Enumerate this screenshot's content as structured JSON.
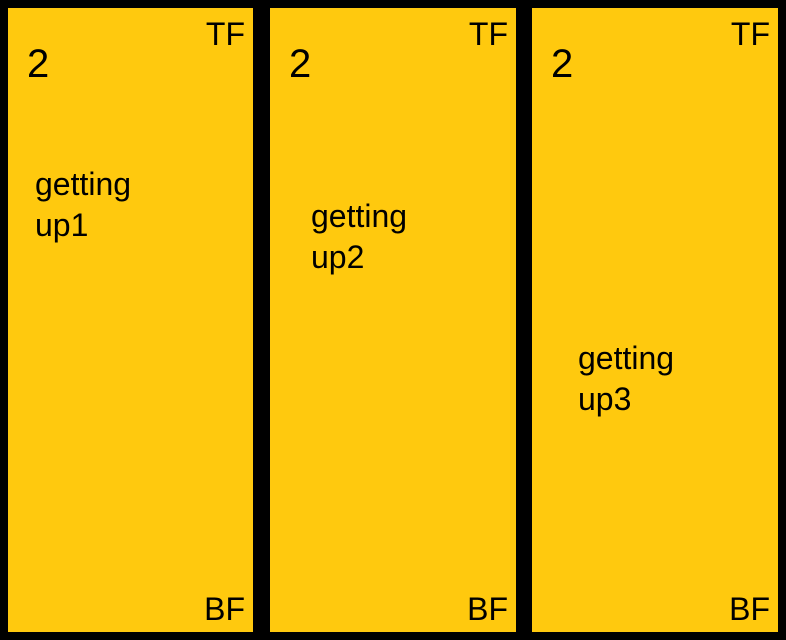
{
  "panels": [
    {
      "corner_top": "TF",
      "number": "2",
      "caption": "getting\nup1",
      "corner_bottom": "BF"
    },
    {
      "corner_top": "TF",
      "number": "2",
      "caption": "getting\nup2",
      "corner_bottom": "BF"
    },
    {
      "corner_top": "TF",
      "number": "2",
      "caption": "getting\nup3",
      "corner_bottom": "BF"
    }
  ],
  "colors": {
    "background": "#000000",
    "panel_fill": "#FFC90E",
    "text": "#000000"
  }
}
